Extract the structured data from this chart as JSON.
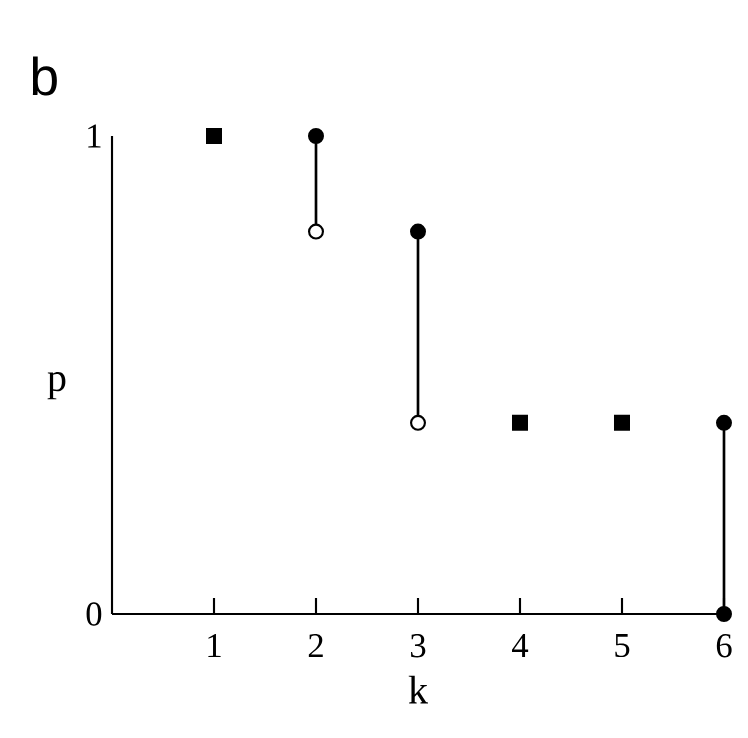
{
  "chart_data": {
    "type": "scatter",
    "title": "b",
    "xlabel": "k",
    "ylabel": "p",
    "xlim": [
      0,
      6
    ],
    "ylim": [
      0,
      1
    ],
    "xticks": [
      1,
      2,
      3,
      4,
      5,
      6
    ],
    "yticks": [
      0,
      1
    ],
    "grid": false,
    "series": [
      {
        "type": "line",
        "color": "#000000",
        "marker": "none",
        "line_style": "solid",
        "x": [
          2,
          2
        ],
        "values": [
          1,
          0.8
        ]
      },
      {
        "type": "line",
        "color": "#000000",
        "marker": "none",
        "line_style": "solid",
        "x": [
          3,
          3
        ],
        "values": [
          0.8,
          0.4
        ]
      },
      {
        "type": "line",
        "color": "#000000",
        "marker": "circle",
        "line_style": "solid",
        "x": [
          6,
          6
        ],
        "values": [
          0.4,
          0
        ]
      },
      {
        "color": "#000000",
        "marker": "square",
        "x": [
          1,
          4,
          5
        ],
        "values": [
          1,
          0.4,
          0.4
        ]
      },
      {
        "color": "#000000",
        "marker": "circle",
        "x": [
          2,
          3
        ],
        "values": [
          1,
          0.8
        ]
      },
      {
        "color": "#ffffff",
        "marker": "circle",
        "x": [
          2,
          3
        ],
        "values": [
          0.8,
          0.4
        ]
      }
    ]
  }
}
